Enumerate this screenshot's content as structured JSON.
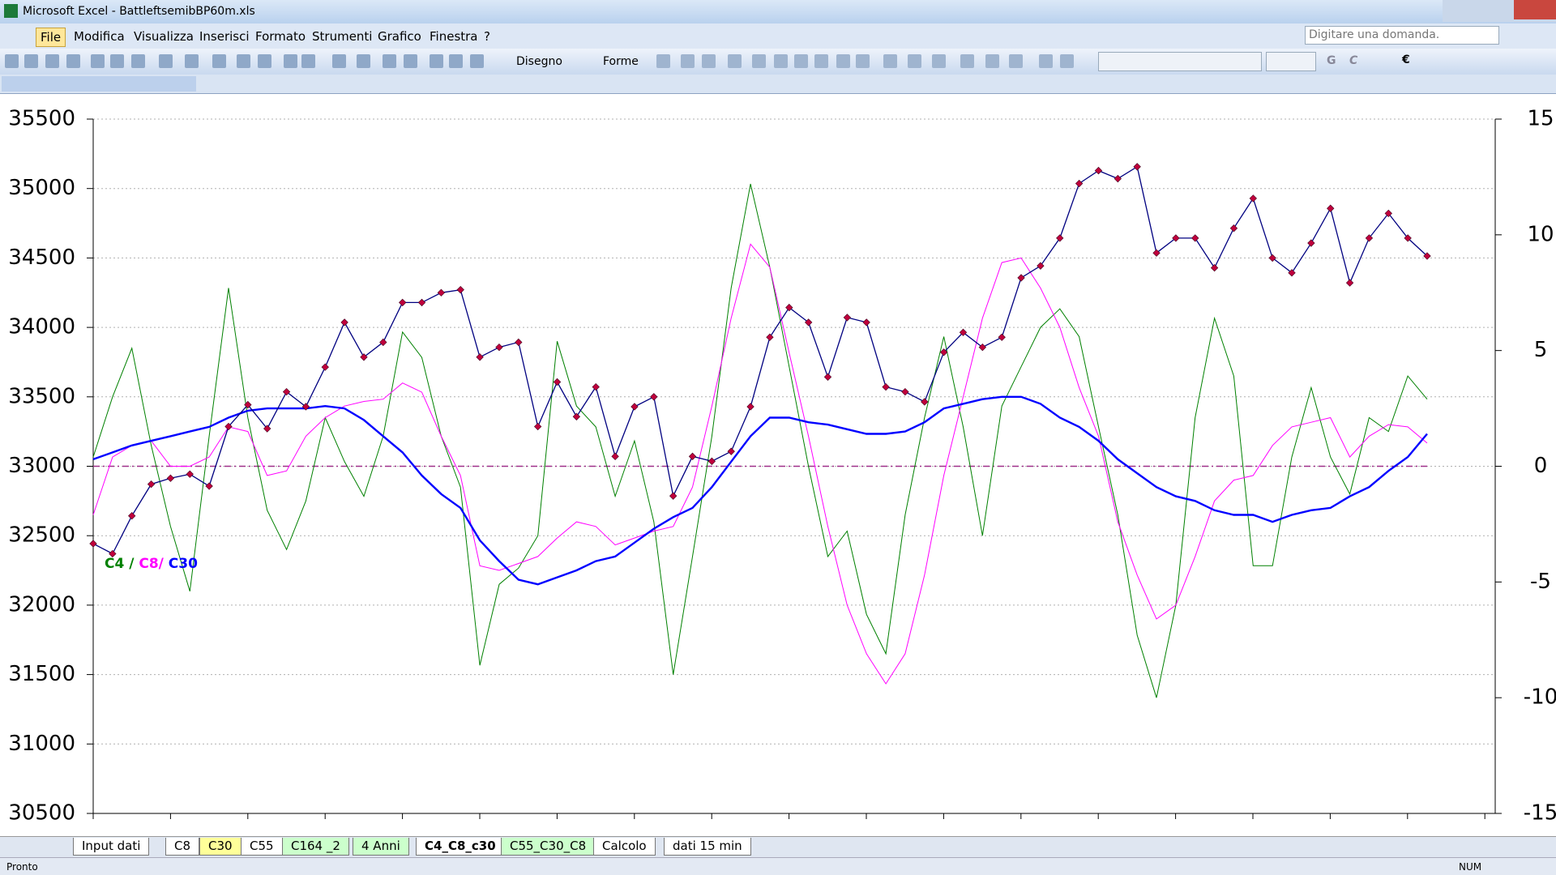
{
  "window": {
    "title": "Microsoft Excel - BattleftsemibBP60m.xls"
  },
  "menu": [
    "File",
    "Modifica",
    "Visualizza",
    "Inserisci",
    "Formato",
    "Strumenti",
    "Grafico",
    "Finestra",
    "?"
  ],
  "help_box": "Digitare una domanda.",
  "toolbar": {
    "drawing": "Disegno",
    "shapes": "Forme",
    "bold": "G",
    "italic": "C",
    "euro": "€"
  },
  "sheet_tabs": [
    {
      "label": "Input dati",
      "color": "#ffffff"
    },
    {
      "label": "C8",
      "color": "#ffffff"
    },
    {
      "label": "C30",
      "color": "#ffff99"
    },
    {
      "label": "C55",
      "color": "#ffffff"
    },
    {
      "label": "C164 _2",
      "color": "#ccffcc"
    },
    {
      "label": "4 Anni",
      "color": "#ccffcc"
    },
    {
      "label": "C4_C8_c30",
      "color": "#ffffff",
      "active": true
    },
    {
      "label": "C55_C30_C8",
      "color": "#ccffcc"
    },
    {
      "label": "Calcolo",
      "color": "#ffffff"
    },
    {
      "label": "dati 15 min",
      "color": "#ffffff"
    }
  ],
  "status": {
    "left": "Pronto",
    "right": "NUM"
  },
  "chart_data": {
    "type": "line",
    "ylim": [
      30500,
      35500
    ],
    "yticks": [
      30500,
      31000,
      31500,
      32000,
      32500,
      33000,
      33500,
      34000,
      34500,
      35000,
      35500
    ],
    "y2lim": [
      -15,
      15
    ],
    "y2ticks": [
      -15,
      -10,
      -5,
      0,
      5,
      10,
      15
    ],
    "y2_refline": 0,
    "grid": true,
    "annotation": [
      {
        "text": "C4",
        "color": "#008000"
      },
      {
        "text": " / ",
        "color": "#008000"
      },
      {
        "text": "C8/",
        "color": "#ff00ff"
      },
      {
        "text": " C30",
        "color": "#0000ff"
      }
    ],
    "series": [
      {
        "color": "#000080",
        "marker_color": "#c0003c",
        "markers": true,
        "values": [
          32443,
          32370,
          32643,
          32871,
          32914,
          32943,
          32857,
          33286,
          33443,
          33271,
          33536,
          33429,
          33714,
          34036,
          33786,
          33893,
          34179,
          34179,
          34250,
          34271,
          33786,
          33857,
          33893,
          33286,
          33607,
          33357,
          33571,
          33071,
          33429,
          33500,
          32786,
          33071,
          33036,
          33107,
          33429,
          33929,
          34143,
          34036,
          33643,
          34071,
          34036,
          33571,
          33536,
          33464,
          33821,
          33964,
          33857,
          33929,
          34357,
          34443,
          34643,
          35036,
          35129,
          35071,
          35157,
          34536,
          34643,
          34643,
          34429,
          34714,
          34929,
          34500,
          34393,
          34607,
          34857,
          34321,
          34643,
          34821,
          34643,
          34514
        ]
      },
      {
        "color": "#008000",
        "axis": "y2",
        "width": 1,
        "values": [
          0.4,
          3.0,
          5.1,
          0.9,
          -2.6,
          -5.4,
          1.3,
          7.7,
          2.1,
          -1.9,
          -3.6,
          -1.5,
          2.1,
          0.2,
          -1.3,
          1.3,
          5.8,
          4.7,
          1.3,
          -0.9,
          -8.6,
          -5.1,
          -4.4,
          -3.0,
          5.4,
          2.6,
          1.7,
          -1.3,
          1.1,
          -2.4,
          -9.0,
          -3.9,
          1.3,
          7.7,
          12.2,
          8.6,
          4.3,
          0,
          -3.9,
          -2.8,
          -6.4,
          -8.1,
          -2.1,
          2.1,
          5.6,
          1.7,
          -3.0,
          2.6,
          4.3,
          6.0,
          6.8,
          5.6,
          1.7,
          -2.1,
          -7.3,
          -10.0,
          -6.0,
          2.1,
          6.4,
          3.9,
          -4.3,
          -4.3,
          0.4,
          3.4,
          0.4,
          -1.2,
          2.1,
          1.5,
          3.9,
          2.9
        ]
      },
      {
        "color": "#ff00ff",
        "axis": "y2",
        "width": 1,
        "values": [
          -2.1,
          0.4,
          0.9,
          1.1,
          0,
          0,
          0.4,
          1.7,
          1.5,
          -0.4,
          -0.2,
          1.3,
          2.1,
          2.6,
          2.8,
          2.9,
          3.6,
          3.2,
          1.3,
          -0.4,
          -4.3,
          -4.5,
          -4.2,
          -3.9,
          -3.1,
          -2.4,
          -2.6,
          -3.4,
          -3.1,
          -2.8,
          -2.6,
          -0.9,
          2.6,
          6.4,
          9.6,
          8.6,
          4.9,
          1.3,
          -2.6,
          -6.0,
          -8.1,
          -9.4,
          -8.1,
          -4.7,
          -0.4,
          3.0,
          6.4,
          8.8,
          9.0,
          7.7,
          6.0,
          3.4,
          1.3,
          -2.4,
          -4.7,
          -6.6,
          -6.0,
          -3.9,
          -1.5,
          -0.6,
          -0.4,
          0.9,
          1.7,
          1.9,
          2.1,
          0.4,
          1.3,
          1.8,
          1.7,
          1.0
        ]
      },
      {
        "color": "#0000ff",
        "axis": "y2",
        "width": 2.4,
        "values": [
          0.3,
          0.6,
          0.9,
          1.1,
          1.3,
          1.5,
          1.7,
          2.1,
          2.4,
          2.5,
          2.5,
          2.5,
          2.6,
          2.5,
          2.0,
          1.3,
          0.6,
          -0.4,
          -1.2,
          -1.8,
          -3.2,
          -4.1,
          -4.9,
          -5.1,
          -4.8,
          -4.5,
          -4.1,
          -3.9,
          -3.3,
          -2.7,
          -2.2,
          -1.8,
          -0.9,
          0.2,
          1.3,
          2.1,
          2.1,
          1.9,
          1.8,
          1.6,
          1.4,
          1.4,
          1.5,
          1.9,
          2.5,
          2.7,
          2.9,
          3.0,
          3.0,
          2.7,
          2.1,
          1.7,
          1.1,
          0.3,
          -0.3,
          -0.9,
          -1.3,
          -1.5,
          -1.9,
          -2.1,
          -2.1,
          -2.4,
          -2.1,
          -1.9,
          -1.8,
          -1.3,
          -0.9,
          -0.2,
          0.4,
          1.4
        ]
      }
    ]
  }
}
